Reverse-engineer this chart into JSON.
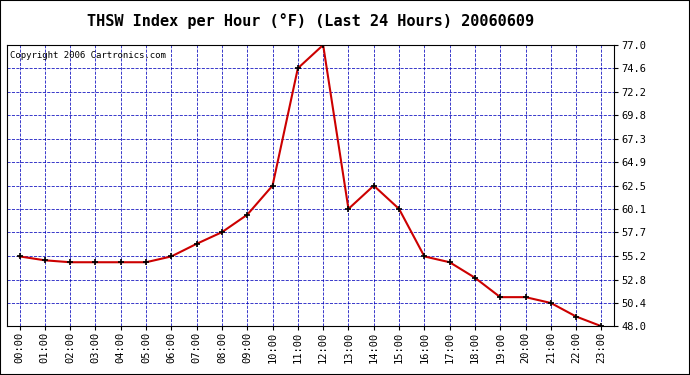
{
  "title": "THSW Index per Hour (°F) (Last 24 Hours) 20060609",
  "copyright": "Copyright 2006 Cartronics.com",
  "hours": [
    "00:00",
    "01:00",
    "02:00",
    "03:00",
    "04:00",
    "05:00",
    "06:00",
    "07:00",
    "08:00",
    "09:00",
    "10:00",
    "11:00",
    "12:00",
    "13:00",
    "14:00",
    "15:00",
    "16:00",
    "17:00",
    "18:00",
    "19:00",
    "20:00",
    "21:00",
    "22:00",
    "23:00"
  ],
  "values": [
    55.2,
    54.8,
    54.6,
    54.6,
    54.6,
    54.6,
    55.2,
    56.5,
    57.7,
    59.5,
    62.5,
    74.6,
    77.0,
    60.1,
    62.5,
    60.1,
    55.2,
    54.6,
    53.0,
    51.0,
    51.0,
    50.4,
    49.0,
    48.0
  ],
  "ylim_min": 48.0,
  "ylim_max": 77.0,
  "yticks": [
    48.0,
    50.4,
    52.8,
    55.2,
    57.7,
    60.1,
    62.5,
    64.9,
    67.3,
    69.8,
    72.2,
    74.6,
    77.0
  ],
  "line_color": "#cc0000",
  "marker_color": "#000000",
  "bg_color": "#ffffff",
  "plot_bg_color": "#ffffff",
  "grid_color": "#0000bb",
  "title_color": "#000000",
  "title_fontsize": 11,
  "copyright_fontsize": 6.5,
  "tick_fontsize": 7.5
}
